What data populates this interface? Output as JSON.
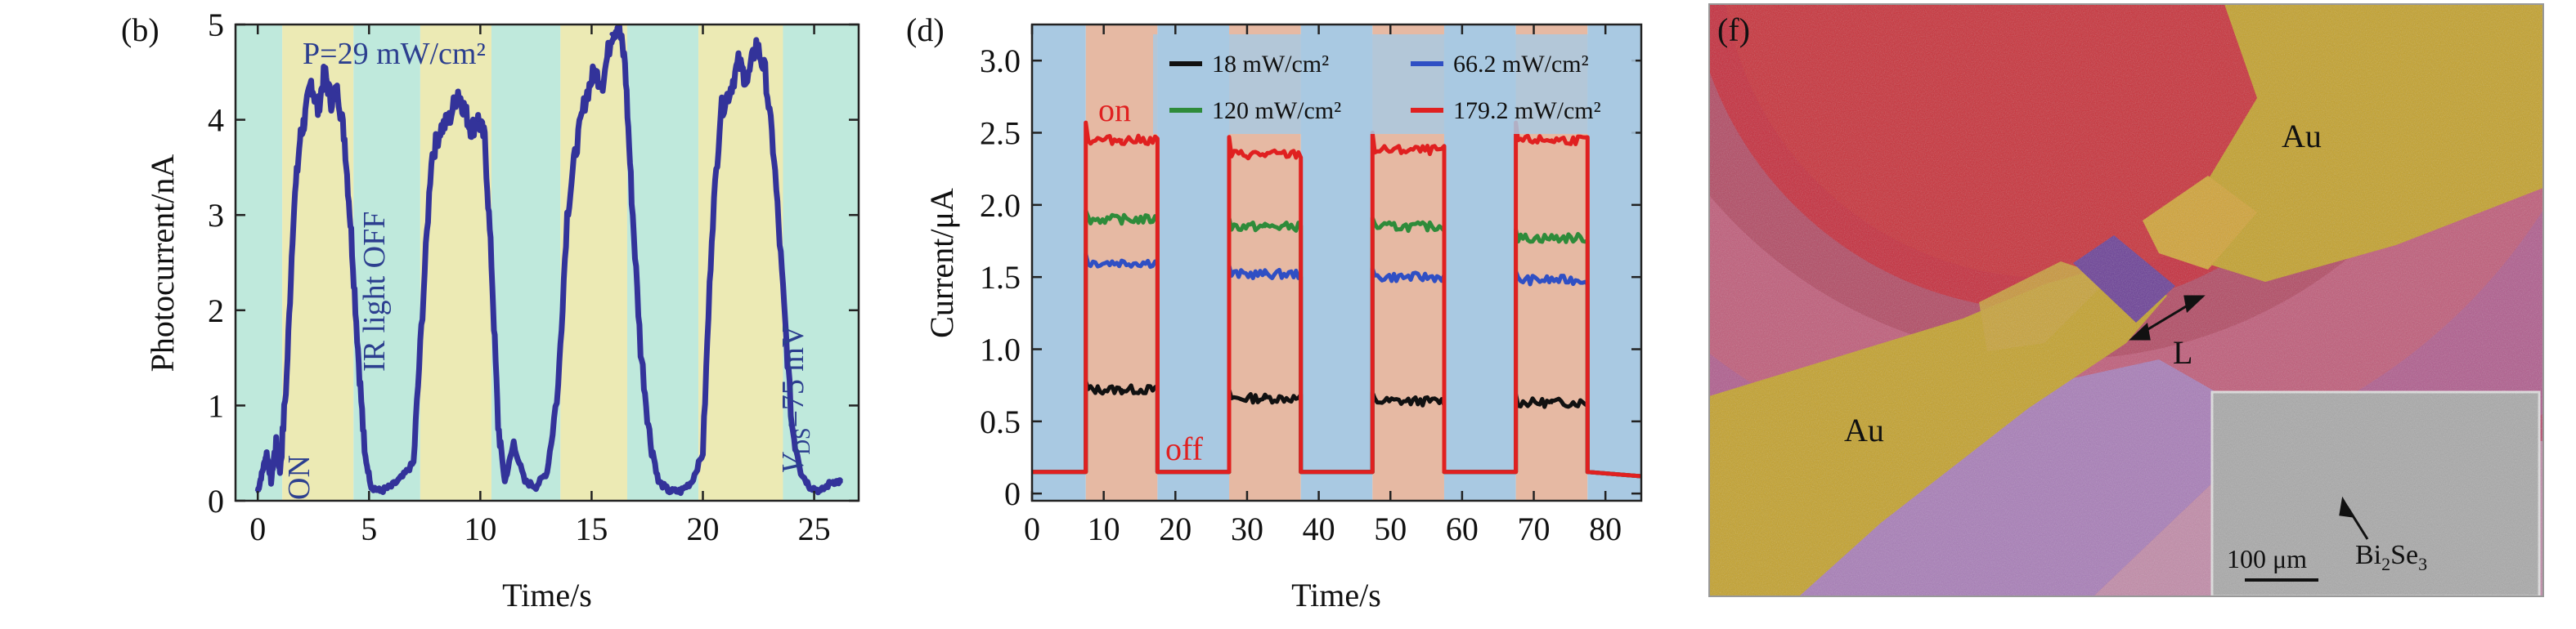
{
  "panels": {
    "b": {
      "label": "(b)",
      "xlabel": "Time/s",
      "ylabel": "Photocurrent/nA",
      "ann_power": "P=29 mW/cm²",
      "ann_on": "ON",
      "ann_off": "IR light OFF",
      "ann_vds_italic": "V",
      "ann_vds_sub": "DS",
      "ann_vds_rest": "=75 mV"
    },
    "d": {
      "label": "(d)",
      "xlabel": "Time/s",
      "ylabel": "Current/μA",
      "ann_on": "on",
      "ann_off": "off"
    },
    "f": {
      "label": "(f)",
      "au_top": "Au",
      "au_bottom": "Au",
      "length_label": "L",
      "inset_material_main": "Bi",
      "inset_material_sub1": "2",
      "inset_material_mid": "Se",
      "inset_material_sub2": "3",
      "scale_bar": "100 μm"
    }
  },
  "chart_data": [
    {
      "type": "line",
      "panel": "b",
      "xlim": [
        -1,
        27
      ],
      "ylim": [
        0,
        5
      ],
      "xticks": [
        0,
        5,
        10,
        15,
        20,
        25
      ],
      "yticks": [
        0,
        1,
        2,
        3,
        4,
        5
      ],
      "xlabel": "Time/s",
      "ylabel": "Photocurrent/nA",
      "background_bands": [
        {
          "from": -1,
          "to": 1.1,
          "state": "off",
          "color": "#bfe9dc"
        },
        {
          "from": 1.1,
          "to": 4.3,
          "state": "on",
          "color": "#eceab4"
        },
        {
          "from": 4.3,
          "to": 7.3,
          "state": "off",
          "color": "#bfe9dc"
        },
        {
          "from": 7.3,
          "to": 10.5,
          "state": "on",
          "color": "#eceab4"
        },
        {
          "from": 10.5,
          "to": 13.6,
          "state": "off",
          "color": "#bfe9dc"
        },
        {
          "from": 13.6,
          "to": 16.6,
          "state": "on",
          "color": "#eceab4"
        },
        {
          "from": 16.6,
          "to": 19.8,
          "state": "off",
          "color": "#bfe9dc"
        },
        {
          "from": 19.8,
          "to": 23.6,
          "state": "on",
          "color": "#eceab4"
        },
        {
          "from": 23.6,
          "to": 27,
          "state": "off",
          "color": "#bfe9dc"
        }
      ],
      "series": [
        {
          "color": "#33339a",
          "x": [
            0.0,
            0.2,
            0.4,
            0.6,
            0.8,
            1.0,
            1.3,
            1.6,
            1.9,
            2.1,
            2.4,
            2.7,
            3.0,
            3.3,
            3.6,
            3.9,
            4.2,
            4.5,
            4.8,
            5.1,
            5.5,
            6.0,
            6.5,
            7.0,
            7.4,
            7.8,
            8.2,
            8.6,
            9.0,
            9.3,
            9.6,
            9.9,
            10.2,
            10.5,
            10.8,
            11.1,
            11.5,
            12.0,
            12.5,
            13.0,
            13.5,
            13.9,
            14.3,
            14.7,
            15.1,
            15.5,
            15.9,
            16.2,
            16.5,
            16.8,
            17.2,
            17.6,
            18.0,
            18.5,
            19.0,
            19.5,
            20.0,
            20.4,
            20.8,
            21.2,
            21.6,
            22.0,
            22.4,
            22.8,
            23.2,
            23.6,
            24.0,
            24.4,
            24.8,
            25.3,
            25.8,
            26.2
          ],
          "y": [
            0.1,
            0.3,
            0.5,
            0.2,
            0.6,
            0.3,
            1.3,
            3.0,
            3.8,
            4.0,
            4.4,
            4.1,
            4.5,
            4.2,
            4.3,
            3.8,
            2.8,
            1.6,
            0.5,
            0.15,
            0.1,
            0.15,
            0.25,
            0.4,
            2.0,
            3.6,
            3.9,
            4.0,
            4.3,
            4.1,
            3.9,
            4.0,
            3.8,
            2.5,
            0.8,
            0.2,
            0.6,
            0.2,
            0.15,
            0.3,
            1.2,
            3.0,
            3.7,
            4.2,
            4.5,
            4.4,
            4.9,
            5.0,
            4.6,
            3.2,
            1.6,
            0.7,
            0.2,
            0.1,
            0.1,
            0.2,
            0.5,
            2.8,
            4.1,
            4.3,
            4.6,
            4.4,
            4.8,
            4.5,
            3.6,
            2.2,
            0.8,
            0.3,
            0.15,
            0.1,
            0.2,
            0.2
          ]
        }
      ]
    },
    {
      "type": "line",
      "panel": "d",
      "xlim": [
        0,
        85
      ],
      "ylim": [
        -0.05,
        3.25
      ],
      "xticks": [
        0,
        10,
        20,
        30,
        40,
        50,
        60,
        70,
        80
      ],
      "yticks": [
        0,
        0.5,
        1.0,
        1.5,
        2.0,
        2.5,
        3.0
      ],
      "ytick_labels": [
        "0",
        "0.5",
        "1.0",
        "1.5",
        "2.0",
        "2.5",
        "3.0"
      ],
      "xlabel": "Time/s",
      "ylabel": "Current/μA",
      "legend_position": "top",
      "background_bands": [
        {
          "from": 0,
          "to": 7.5,
          "state": "off",
          "color": "#a9c9e2"
        },
        {
          "from": 7.5,
          "to": 17.5,
          "state": "on",
          "color": "#e6b9a3"
        },
        {
          "from": 17.5,
          "to": 27.5,
          "state": "off",
          "color": "#a9c9e2"
        },
        {
          "from": 27.5,
          "to": 37.5,
          "state": "on",
          "color": "#e6b9a3"
        },
        {
          "from": 37.5,
          "to": 47.5,
          "state": "off",
          "color": "#a9c9e2"
        },
        {
          "from": 47.5,
          "to": 57.5,
          "state": "on",
          "color": "#e6b9a3"
        },
        {
          "from": 57.5,
          "to": 67.5,
          "state": "off",
          "color": "#a9c9e2"
        },
        {
          "from": 67.5,
          "to": 77.5,
          "state": "on",
          "color": "#e6b9a3"
        },
        {
          "from": 77.5,
          "to": 85,
          "state": "off",
          "color": "#a9c9e2"
        }
      ],
      "series": [
        {
          "name": "18 mW/cm²",
          "color": "#111111",
          "off_value": 0.15,
          "on_values": [
            0.72,
            0.66,
            0.64,
            0.63
          ]
        },
        {
          "name": "66.2 mW/cm²",
          "color": "#2f4fc4",
          "off_value": 0.15,
          "on_values": [
            1.6,
            1.52,
            1.5,
            1.48
          ]
        },
        {
          "name": "120 mW/cm²",
          "color": "#2e8b3a",
          "off_value": 0.15,
          "on_values": [
            1.9,
            1.85,
            1.85,
            1.77
          ]
        },
        {
          "name": "179.2 mW/cm²",
          "color": "#e02020",
          "off_value": 0.15,
          "on_values": [
            2.45,
            2.35,
            2.38,
            2.45
          ]
        }
      ],
      "on_intervals": [
        [
          7.5,
          17.5
        ],
        [
          27.5,
          37.5
        ],
        [
          47.5,
          57.5
        ],
        [
          67.5,
          77.5
        ]
      ]
    }
  ],
  "colors": {
    "b_off_band": "#bfe9dc",
    "b_on_band": "#eceab4",
    "b_curve": "#33339a",
    "annotation_blue": "#2c3f8f",
    "d_off_band": "#a9c9e2",
    "d_on_band": "#e6b9a3",
    "d_red_text": "#e02020",
    "f_red": "#c62a3a",
    "f_pink": "#b94a6e",
    "f_magenta": "#b060a8",
    "f_gold": "#c4a12a",
    "f_purple": "#6a3e96"
  }
}
